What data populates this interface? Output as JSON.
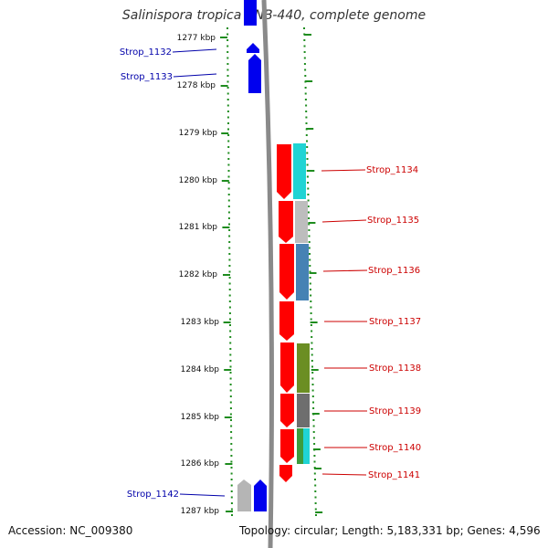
{
  "title": "Salinispora tropica CNB-440, complete genome",
  "accession": "Accession: NC_009380",
  "topology": "Topology: circular; Length: 5,183,331 bp; Genes: 4,596",
  "colors": {
    "tick_green": "#1e8c1e",
    "forward_blue": "#0000ee",
    "reverse_red": "#ff0000",
    "left_label": "#0000aa",
    "right_label": "#cc0000",
    "backbone": "#8a8a8a"
  },
  "ruler": {
    "unit": "kbp",
    "ticks": [
      "1277 kbp",
      "1278 kbp",
      "1279 kbp",
      "1280 kbp",
      "1281 kbp",
      "1282 kbp",
      "1283 kbp",
      "1284 kbp",
      "1285 kbp",
      "1286 kbp",
      "1287 kbp"
    ]
  },
  "left_genes": [
    "Strop_1132",
    "Strop_1133",
    "Strop_1142"
  ],
  "right_genes": [
    "Strop_1134",
    "Strop_1135",
    "Strop_1136",
    "Strop_1137",
    "Strop_1138",
    "Strop_1139",
    "Strop_1140",
    "Strop_1141"
  ],
  "cog_colors": [
    "#20d4d4",
    "#bdbdbd",
    "#4682b4",
    "#6b8e23",
    "#6e6e6e",
    "#3c9c3c",
    "#20d4d4"
  ]
}
